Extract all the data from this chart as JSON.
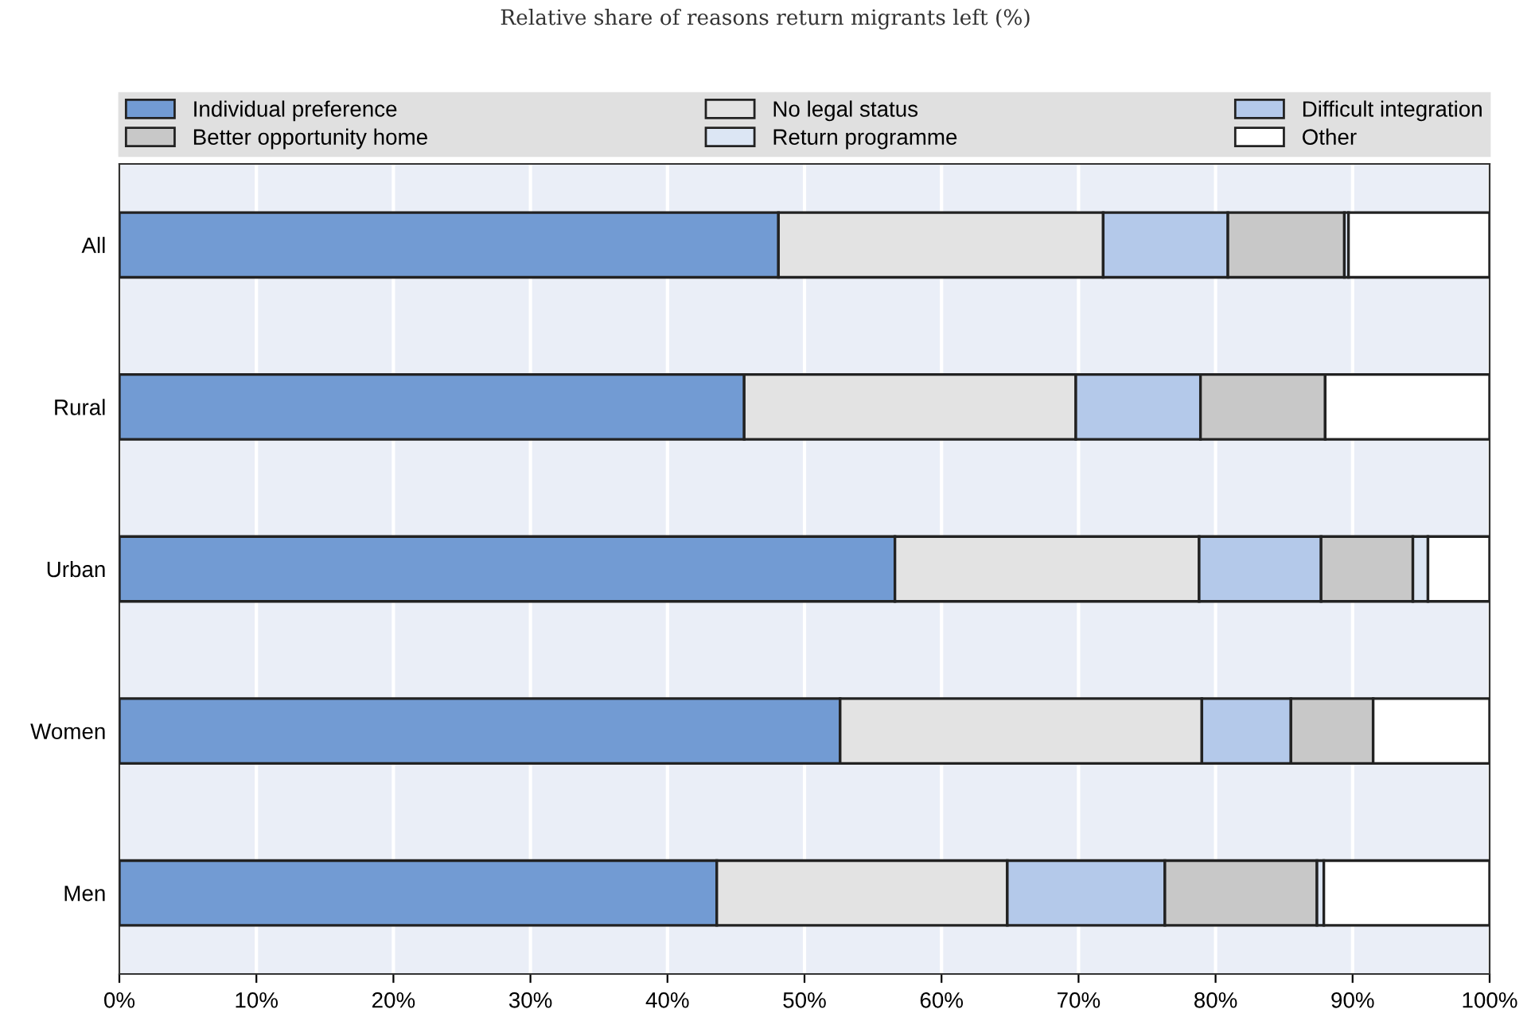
{
  "chart_data": {
    "type": "bar",
    "orientation": "horizontal",
    "stacked": true,
    "title": "Relative share of reasons return migrants left (%)",
    "categories": [
      "All",
      "Rural",
      "Urban",
      "Women",
      "Men"
    ],
    "series": [
      {
        "name": "Individual preference",
        "color": "#729bd3",
        "values": [
          48.1,
          45.6,
          56.6,
          52.6,
          43.6
        ]
      },
      {
        "name": "No legal status",
        "color": "#e3e3e3",
        "values": [
          23.7,
          24.2,
          22.2,
          26.4,
          21.2
        ]
      },
      {
        "name": "Difficult integration",
        "color": "#b4c9ea",
        "values": [
          9.1,
          9.1,
          8.9,
          6.5,
          11.5
        ]
      },
      {
        "name": "Better opportunity home",
        "color": "#c8c8c8",
        "values": [
          8.5,
          9.1,
          6.7,
          6.0,
          11.1
        ]
      },
      {
        "name": "Return programme",
        "color": "#dce6f4",
        "values": [
          0.3,
          null,
          1.1,
          null,
          0.5
        ]
      },
      {
        "name": "Other",
        "color": "#ffffff",
        "values": [
          10.3,
          12.0,
          4.5,
          8.5,
          12.1
        ]
      }
    ],
    "xlim": [
      0,
      100
    ],
    "xticks": [
      {
        "value": 0,
        "label": "0%"
      },
      {
        "value": 10,
        "label": "10%"
      },
      {
        "value": 20,
        "label": "20%"
      },
      {
        "value": 30,
        "label": "30%"
      },
      {
        "value": 40,
        "label": "40%"
      },
      {
        "value": 50,
        "label": "50%"
      },
      {
        "value": 60,
        "label": "60%"
      },
      {
        "value": 70,
        "label": "70%"
      },
      {
        "value": 80,
        "label": "80%"
      },
      {
        "value": 90,
        "label": "90%"
      },
      {
        "value": 100,
        "label": "100%"
      }
    ],
    "grid": "x",
    "legend": "top"
  }
}
